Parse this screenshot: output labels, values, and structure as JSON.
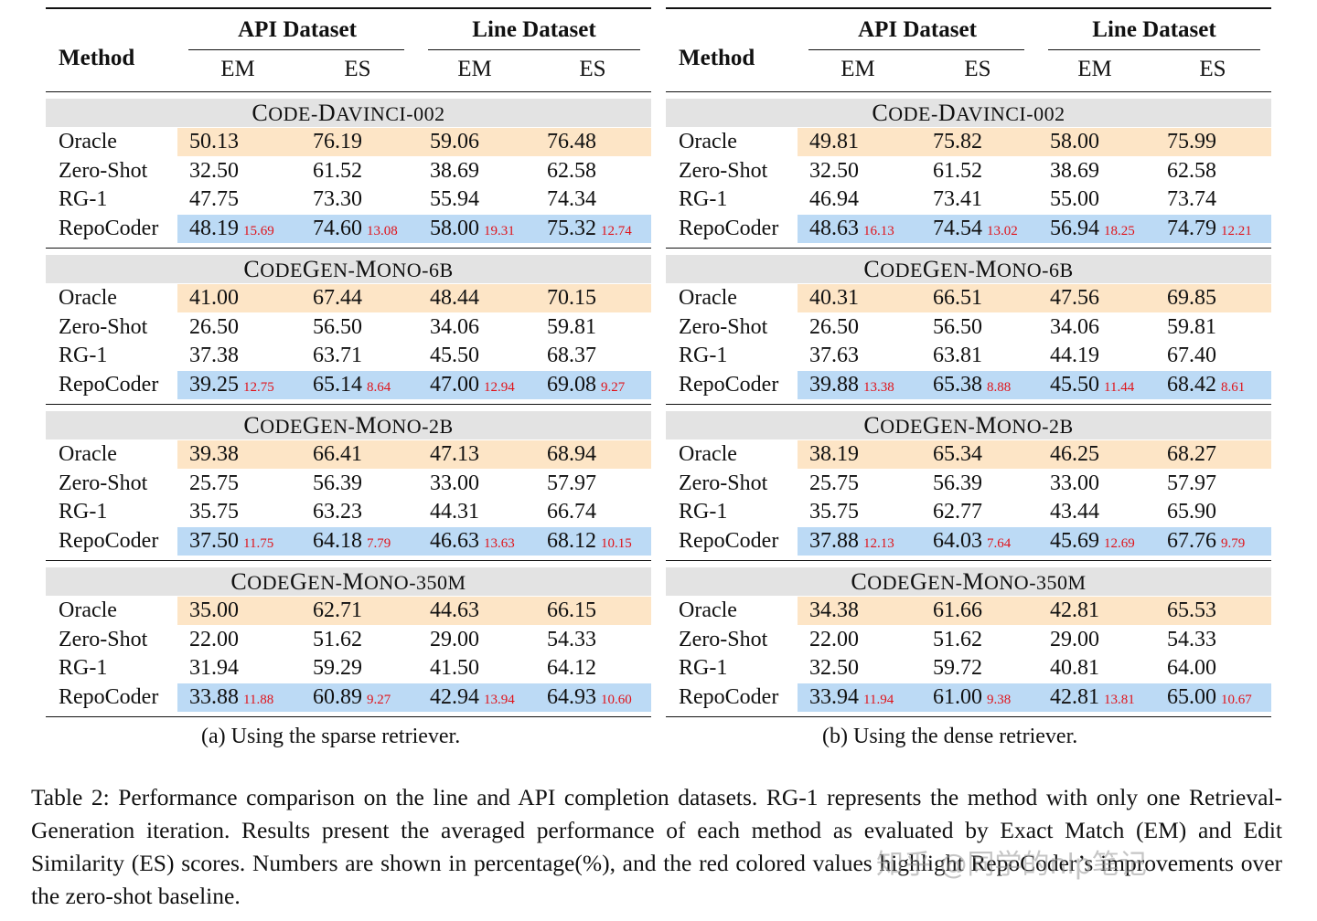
{
  "panels": [
    {
      "id": "a",
      "header": {
        "method": "Method",
        "api": "API Dataset",
        "line": "Line Dataset",
        "em": "EM",
        "es": "ES"
      },
      "caption": "(a) Using the sparse retriever.",
      "groups": [
        {
          "name_first": "C",
          "name_rest": "ODE-",
          "name_first2": "D",
          "name_rest2": "AVINCI-002",
          "rows": [
            {
              "method": "Oracle",
              "v": [
                "50.13",
                "76.19",
                "59.06",
                "76.48"
              ],
              "d": [
                "",
                "",
                "",
                ""
              ]
            },
            {
              "method": "Zero-Shot",
              "v": [
                "32.50",
                "61.52",
                "38.69",
                "62.58"
              ],
              "d": [
                "",
                "",
                "",
                ""
              ]
            },
            {
              "method": "RG-1",
              "v": [
                "47.75",
                "73.30",
                "55.94",
                "74.34"
              ],
              "d": [
                "",
                "",
                "",
                ""
              ]
            },
            {
              "method": "RepoCoder",
              "v": [
                "48.19",
                "74.60",
                "58.00",
                "75.32"
              ],
              "d": [
                "15.69",
                "13.08",
                "19.31",
                "12.74"
              ]
            }
          ]
        },
        {
          "name_first": "C",
          "name_rest": "ODE",
          "name_first2": "G",
          "name_rest2": "EN-",
          "name_first3": "M",
          "name_rest3": "ONO-6B",
          "rows": [
            {
              "method": "Oracle",
              "v": [
                "41.00",
                "67.44",
                "48.44",
                "70.15"
              ],
              "d": [
                "",
                "",
                "",
                ""
              ]
            },
            {
              "method": "Zero-Shot",
              "v": [
                "26.50",
                "56.50",
                "34.06",
                "59.81"
              ],
              "d": [
                "",
                "",
                "",
                ""
              ]
            },
            {
              "method": "RG-1",
              "v": [
                "37.38",
                "63.71",
                "45.50",
                "68.37"
              ],
              "d": [
                "",
                "",
                "",
                ""
              ]
            },
            {
              "method": "RepoCoder",
              "v": [
                "39.25",
                "65.14",
                "47.00",
                "69.08"
              ],
              "d": [
                "12.75",
                "8.64",
                "12.94",
                "9.27"
              ]
            }
          ]
        },
        {
          "name_first": "C",
          "name_rest": "ODE",
          "name_first2": "G",
          "name_rest2": "EN-",
          "name_first3": "M",
          "name_rest3": "ONO-2B",
          "rows": [
            {
              "method": "Oracle",
              "v": [
                "39.38",
                "66.41",
                "47.13",
                "68.94"
              ],
              "d": [
                "",
                "",
                "",
                ""
              ]
            },
            {
              "method": "Zero-Shot",
              "v": [
                "25.75",
                "56.39",
                "33.00",
                "57.97"
              ],
              "d": [
                "",
                "",
                "",
                ""
              ]
            },
            {
              "method": "RG-1",
              "v": [
                "35.75",
                "63.23",
                "44.31",
                "66.74"
              ],
              "d": [
                "",
                "",
                "",
                ""
              ]
            },
            {
              "method": "RepoCoder",
              "v": [
                "37.50",
                "64.18",
                "46.63",
                "68.12"
              ],
              "d": [
                "11.75",
                "7.79",
                "13.63",
                "10.15"
              ]
            }
          ]
        },
        {
          "name_first": "C",
          "name_rest": "ODE",
          "name_first2": "G",
          "name_rest2": "EN-",
          "name_first3": "M",
          "name_rest3": "ONO-350M",
          "rows": [
            {
              "method": "Oracle",
              "v": [
                "35.00",
                "62.71",
                "44.63",
                "66.15"
              ],
              "d": [
                "",
                "",
                "",
                ""
              ]
            },
            {
              "method": "Zero-Shot",
              "v": [
                "22.00",
                "51.62",
                "29.00",
                "54.33"
              ],
              "d": [
                "",
                "",
                "",
                ""
              ]
            },
            {
              "method": "RG-1",
              "v": [
                "31.94",
                "59.29",
                "41.50",
                "64.12"
              ],
              "d": [
                "",
                "",
                "",
                ""
              ]
            },
            {
              "method": "RepoCoder",
              "v": [
                "33.88",
                "60.89",
                "42.94",
                "64.93"
              ],
              "d": [
                "11.88",
                "9.27",
                "13.94",
                "10.60"
              ]
            }
          ]
        }
      ]
    },
    {
      "id": "b",
      "header": {
        "method": "Method",
        "api": "API Dataset",
        "line": "Line Dataset",
        "em": "EM",
        "es": "ES"
      },
      "caption": "(b) Using the dense retriever.",
      "groups": [
        {
          "name_first": "C",
          "name_rest": "ODE-",
          "name_first2": "D",
          "name_rest2": "AVINCI-002",
          "rows": [
            {
              "method": "Oracle",
              "v": [
                "49.81",
                "75.82",
                "58.00",
                "75.99"
              ],
              "d": [
                "",
                "",
                "",
                ""
              ]
            },
            {
              "method": "Zero-Shot",
              "v": [
                "32.50",
                "61.52",
                "38.69",
                "62.58"
              ],
              "d": [
                "",
                "",
                "",
                ""
              ]
            },
            {
              "method": "RG-1",
              "v": [
                "46.94",
                "73.41",
                "55.00",
                "73.74"
              ],
              "d": [
                "",
                "",
                "",
                ""
              ]
            },
            {
              "method": "RepoCoder",
              "v": [
                "48.63",
                "74.54",
                "56.94",
                "74.79"
              ],
              "d": [
                "16.13",
                "13.02",
                "18.25",
                "12.21"
              ]
            }
          ]
        },
        {
          "name_first": "C",
          "name_rest": "ODE",
          "name_first2": "G",
          "name_rest2": "EN-",
          "name_first3": "M",
          "name_rest3": "ONO-6B",
          "rows": [
            {
              "method": "Oracle",
              "v": [
                "40.31",
                "66.51",
                "47.56",
                "69.85"
              ],
              "d": [
                "",
                "",
                "",
                ""
              ]
            },
            {
              "method": "Zero-Shot",
              "v": [
                "26.50",
                "56.50",
                "34.06",
                "59.81"
              ],
              "d": [
                "",
                "",
                "",
                ""
              ]
            },
            {
              "method": "RG-1",
              "v": [
                "37.63",
                "63.81",
                "44.19",
                "67.40"
              ],
              "d": [
                "",
                "",
                "",
                ""
              ]
            },
            {
              "method": "RepoCoder",
              "v": [
                "39.88",
                "65.38",
                "45.50",
                "68.42"
              ],
              "d": [
                "13.38",
                "8.88",
                "11.44",
                "8.61"
              ]
            }
          ]
        },
        {
          "name_first": "C",
          "name_rest": "ODE",
          "name_first2": "G",
          "name_rest2": "EN-",
          "name_first3": "M",
          "name_rest3": "ONO-2B",
          "rows": [
            {
              "method": "Oracle",
              "v": [
                "38.19",
                "65.34",
                "46.25",
                "68.27"
              ],
              "d": [
                "",
                "",
                "",
                ""
              ]
            },
            {
              "method": "Zero-Shot",
              "v": [
                "25.75",
                "56.39",
                "33.00",
                "57.97"
              ],
              "d": [
                "",
                "",
                "",
                ""
              ]
            },
            {
              "method": "RG-1",
              "v": [
                "35.75",
                "62.77",
                "43.44",
                "65.90"
              ],
              "d": [
                "",
                "",
                "",
                ""
              ]
            },
            {
              "method": "RepoCoder",
              "v": [
                "37.88",
                "64.03",
                "45.69",
                "67.76"
              ],
              "d": [
                "12.13",
                "7.64",
                "12.69",
                "9.79"
              ]
            }
          ]
        },
        {
          "name_first": "C",
          "name_rest": "ODE",
          "name_first2": "G",
          "name_rest2": "EN-",
          "name_first3": "M",
          "name_rest3": "ONO-350M",
          "rows": [
            {
              "method": "Oracle",
              "v": [
                "34.38",
                "61.66",
                "42.81",
                "65.53"
              ],
              "d": [
                "",
                "",
                "",
                ""
              ]
            },
            {
              "method": "Zero-Shot",
              "v": [
                "22.00",
                "51.62",
                "29.00",
                "54.33"
              ],
              "d": [
                "",
                "",
                "",
                ""
              ]
            },
            {
              "method": "RG-1",
              "v": [
                "32.50",
                "59.72",
                "40.81",
                "64.00"
              ],
              "d": [
                "",
                "",
                "",
                ""
              ]
            },
            {
              "method": "RepoCoder",
              "v": [
                "33.94",
                "61.00",
                "42.81",
                "65.00"
              ],
              "d": [
                "11.94",
                "9.38",
                "13.81",
                "10.67"
              ]
            }
          ]
        }
      ]
    }
  ],
  "table_caption": "Table 2: Performance comparison on the line and API completion datasets. RG-1 represents the method with only one Retrieval-Generation iteration. Results present the averaged performance of each method as evaluated by Exact Match (EM) and Edit Similarity (ES) scores. Numbers are shown in percentage(%), and the red colored values highlight RepoCoder’s improvements over the zero-shot baseline.",
  "watermark": "知乎 @同学的nlp笔记",
  "colors": {
    "oracle_band": "#fde5c6",
    "repocoder_band": "#bcdaf5",
    "group_band": "#e3e3e3",
    "delta_text": "#e0131a"
  }
}
